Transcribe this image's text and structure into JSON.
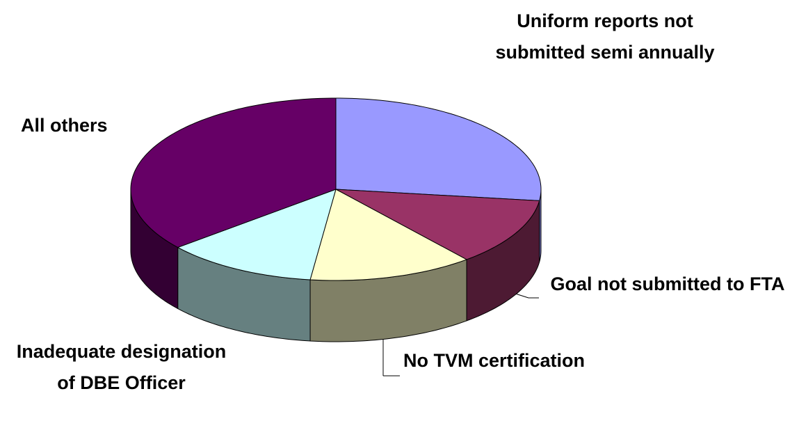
{
  "chart_data": {
    "type": "pie3d",
    "categories": [
      "Uniform reports not submitted semi annually",
      "Goal not submitted to FTA",
      "No TVM certification",
      "Inadequate designation of DBE Officer",
      "All others"
    ],
    "values": [
      27,
      12,
      13,
      12,
      36
    ],
    "colors": [
      "#9999ff",
      "#993366",
      "#ffffcc",
      "#ccffff",
      "#660066"
    ],
    "side_colors": [
      "#7373bf",
      "#4d1a33",
      "#808066",
      "#668080",
      "#330033"
    ]
  }
}
